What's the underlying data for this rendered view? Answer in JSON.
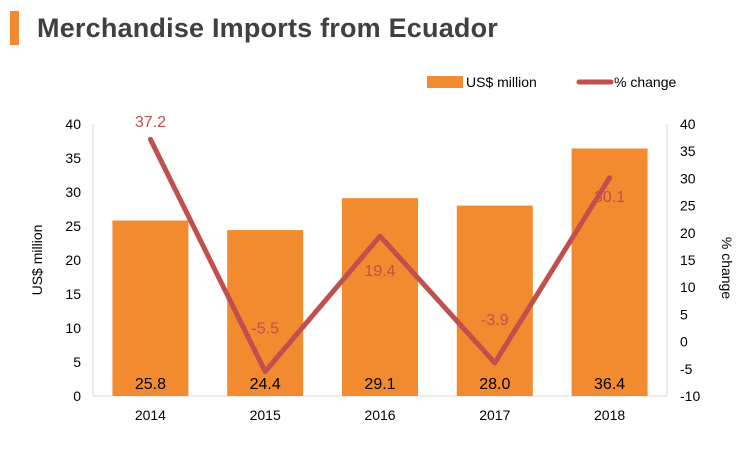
{
  "title": "Merchandise Imports from Ecuador",
  "colors": {
    "bar": "#f28a30",
    "line": "#c0504d",
    "accent": "#f28a30",
    "title": "#404040"
  },
  "chart_data": {
    "type": "bar",
    "categories": [
      "2014",
      "2015",
      "2016",
      "2017",
      "2018"
    ],
    "series": [
      {
        "name": "US$ million",
        "type": "bar",
        "axis": "left",
        "values": [
          25.8,
          24.4,
          29.1,
          28.0,
          36.4
        ],
        "labels": [
          "25.8",
          "24.4",
          "29.1",
          "28.0",
          "36.4"
        ]
      },
      {
        "name": "% change",
        "type": "line",
        "axis": "right",
        "values": [
          37.2,
          -5.5,
          19.4,
          -3.9,
          30.1
        ],
        "labels": [
          "37.2",
          "-5.5",
          "19.4",
          "-3.9",
          "30.1"
        ]
      }
    ],
    "ylabel_left": "US$ million",
    "ylabel_right": "% change",
    "ylim_left": [
      0,
      40
    ],
    "ylim_right": [
      -10,
      40
    ],
    "yticks_left": [
      "0",
      "5",
      "10",
      "15",
      "20",
      "25",
      "30",
      "35",
      "40"
    ],
    "yticks_right": [
      "-10",
      "-5",
      "0",
      "5",
      "10",
      "15",
      "20",
      "25",
      "30",
      "35",
      "40"
    ],
    "legend_position": "top-right",
    "grid": false
  }
}
